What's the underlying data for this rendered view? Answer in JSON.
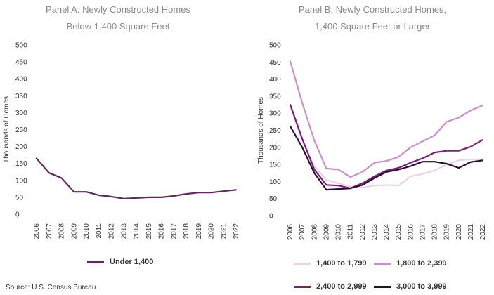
{
  "panel_a": {
    "title_line1": "Panel A: Newly Constructed Homes",
    "title_line2": "Below 1,400 Square Feet"
  },
  "panel_b": {
    "title_line1": "Panel B: Newly Constructed Homes,",
    "title_line2": "1,400 Square Feet or Larger"
  },
  "source": "Source: U.S. Census Bureau.",
  "colors": {
    "under_1400": "#5e2a5e",
    "s1400_1799": "#ead3ea",
    "s1800_2399": "#c892c8",
    "s2400_2999": "#7a1f7a",
    "s3000_3999": "#2a0f2a"
  },
  "chart_data": [
    {
      "type": "line",
      "title": "Panel A: Newly Constructed Homes Below 1,400 Square Feet",
      "xlabel": "",
      "ylabel": "Thousands of Homes",
      "ylim": [
        0,
        500
      ],
      "yticks": [
        0,
        50,
        100,
        150,
        200,
        250,
        300,
        350,
        400,
        450,
        500
      ],
      "x": [
        "2006",
        "2007",
        "2008",
        "2009",
        "2010",
        "2011",
        "2012",
        "2013",
        "2014",
        "2015",
        "2016",
        "2017",
        "2018",
        "2019",
        "2020",
        "2021",
        "2022"
      ],
      "grid": false,
      "legend": "bottom",
      "series": [
        {
          "name": "Under 1,400",
          "color": "#5e2a5e",
          "values": [
            165,
            122,
            107,
            66,
            66,
            56,
            52,
            46,
            48,
            50,
            50,
            54,
            60,
            64,
            64,
            68,
            72
          ]
        }
      ]
    },
    {
      "type": "line",
      "title": "Panel B: Newly Constructed Homes, 1,400 Square Feet or Larger",
      "xlabel": "",
      "ylabel": "Thousands of Homes",
      "ylim": [
        0,
        500
      ],
      "yticks": [
        0,
        50,
        100,
        150,
        200,
        250,
        300,
        350,
        400,
        450,
        500
      ],
      "x": [
        "2006",
        "2007",
        "2008",
        "2009",
        "2010",
        "2011",
        "2012",
        "2013",
        "2014",
        "2015",
        "2016",
        "2017",
        "2018",
        "2019",
        "2020",
        "2021",
        "2022"
      ],
      "grid": false,
      "legend": "bottom",
      "series": [
        {
          "name": "1,400 to 1,799",
          "color": "#ead3ea",
          "values": [
            320,
            220,
            145,
            105,
            95,
            85,
            82,
            88,
            90,
            88,
            115,
            122,
            132,
            150,
            162,
            165,
            165
          ]
        },
        {
          "name": "1,800 to 2,399",
          "color": "#c892c8",
          "values": [
            452,
            330,
            220,
            138,
            135,
            113,
            128,
            155,
            160,
            172,
            200,
            218,
            235,
            275,
            287,
            308,
            323
          ]
        },
        {
          "name": "2,400 to 2,999",
          "color": "#7a1f7a",
          "values": [
            325,
            225,
            135,
            90,
            88,
            80,
            95,
            115,
            132,
            140,
            155,
            168,
            185,
            190,
            190,
            202,
            222
          ]
        },
        {
          "name": "3,000 to 3,999",
          "color": "#2a0f2a",
          "values": [
            262,
            200,
            125,
            76,
            78,
            80,
            90,
            110,
            128,
            135,
            145,
            158,
            158,
            152,
            140,
            157,
            162
          ]
        }
      ]
    }
  ]
}
